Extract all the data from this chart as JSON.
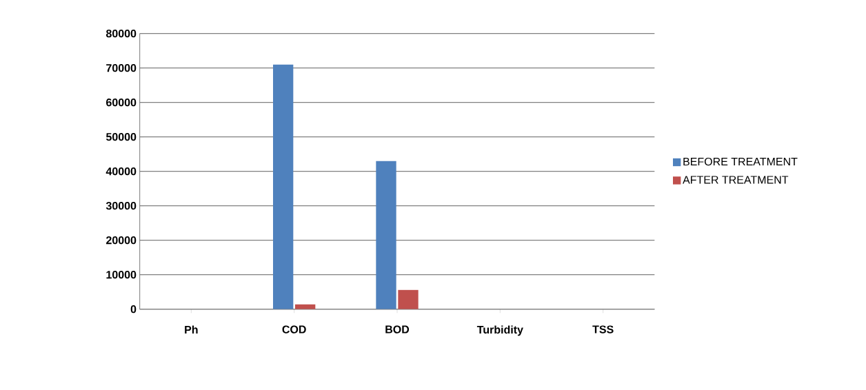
{
  "chart_data": {
    "type": "bar",
    "categories": [
      "Ph",
      "COD",
      "BOD",
      "Turbidity",
      "TSS"
    ],
    "series": [
      {
        "name": "BEFORE TREATMENT",
        "color": "#4f81bd",
        "values": [
          0,
          71000,
          43000,
          0,
          0
        ]
      },
      {
        "name": "AFTER TREATMENT",
        "color": "#c0504d",
        "values": [
          0,
          1400,
          5600,
          0,
          0
        ]
      }
    ],
    "ylim": [
      0,
      80000
    ],
    "yticks": [
      0,
      10000,
      20000,
      30000,
      40000,
      50000,
      60000,
      70000,
      80000
    ],
    "grid": "y",
    "legend": "right"
  }
}
